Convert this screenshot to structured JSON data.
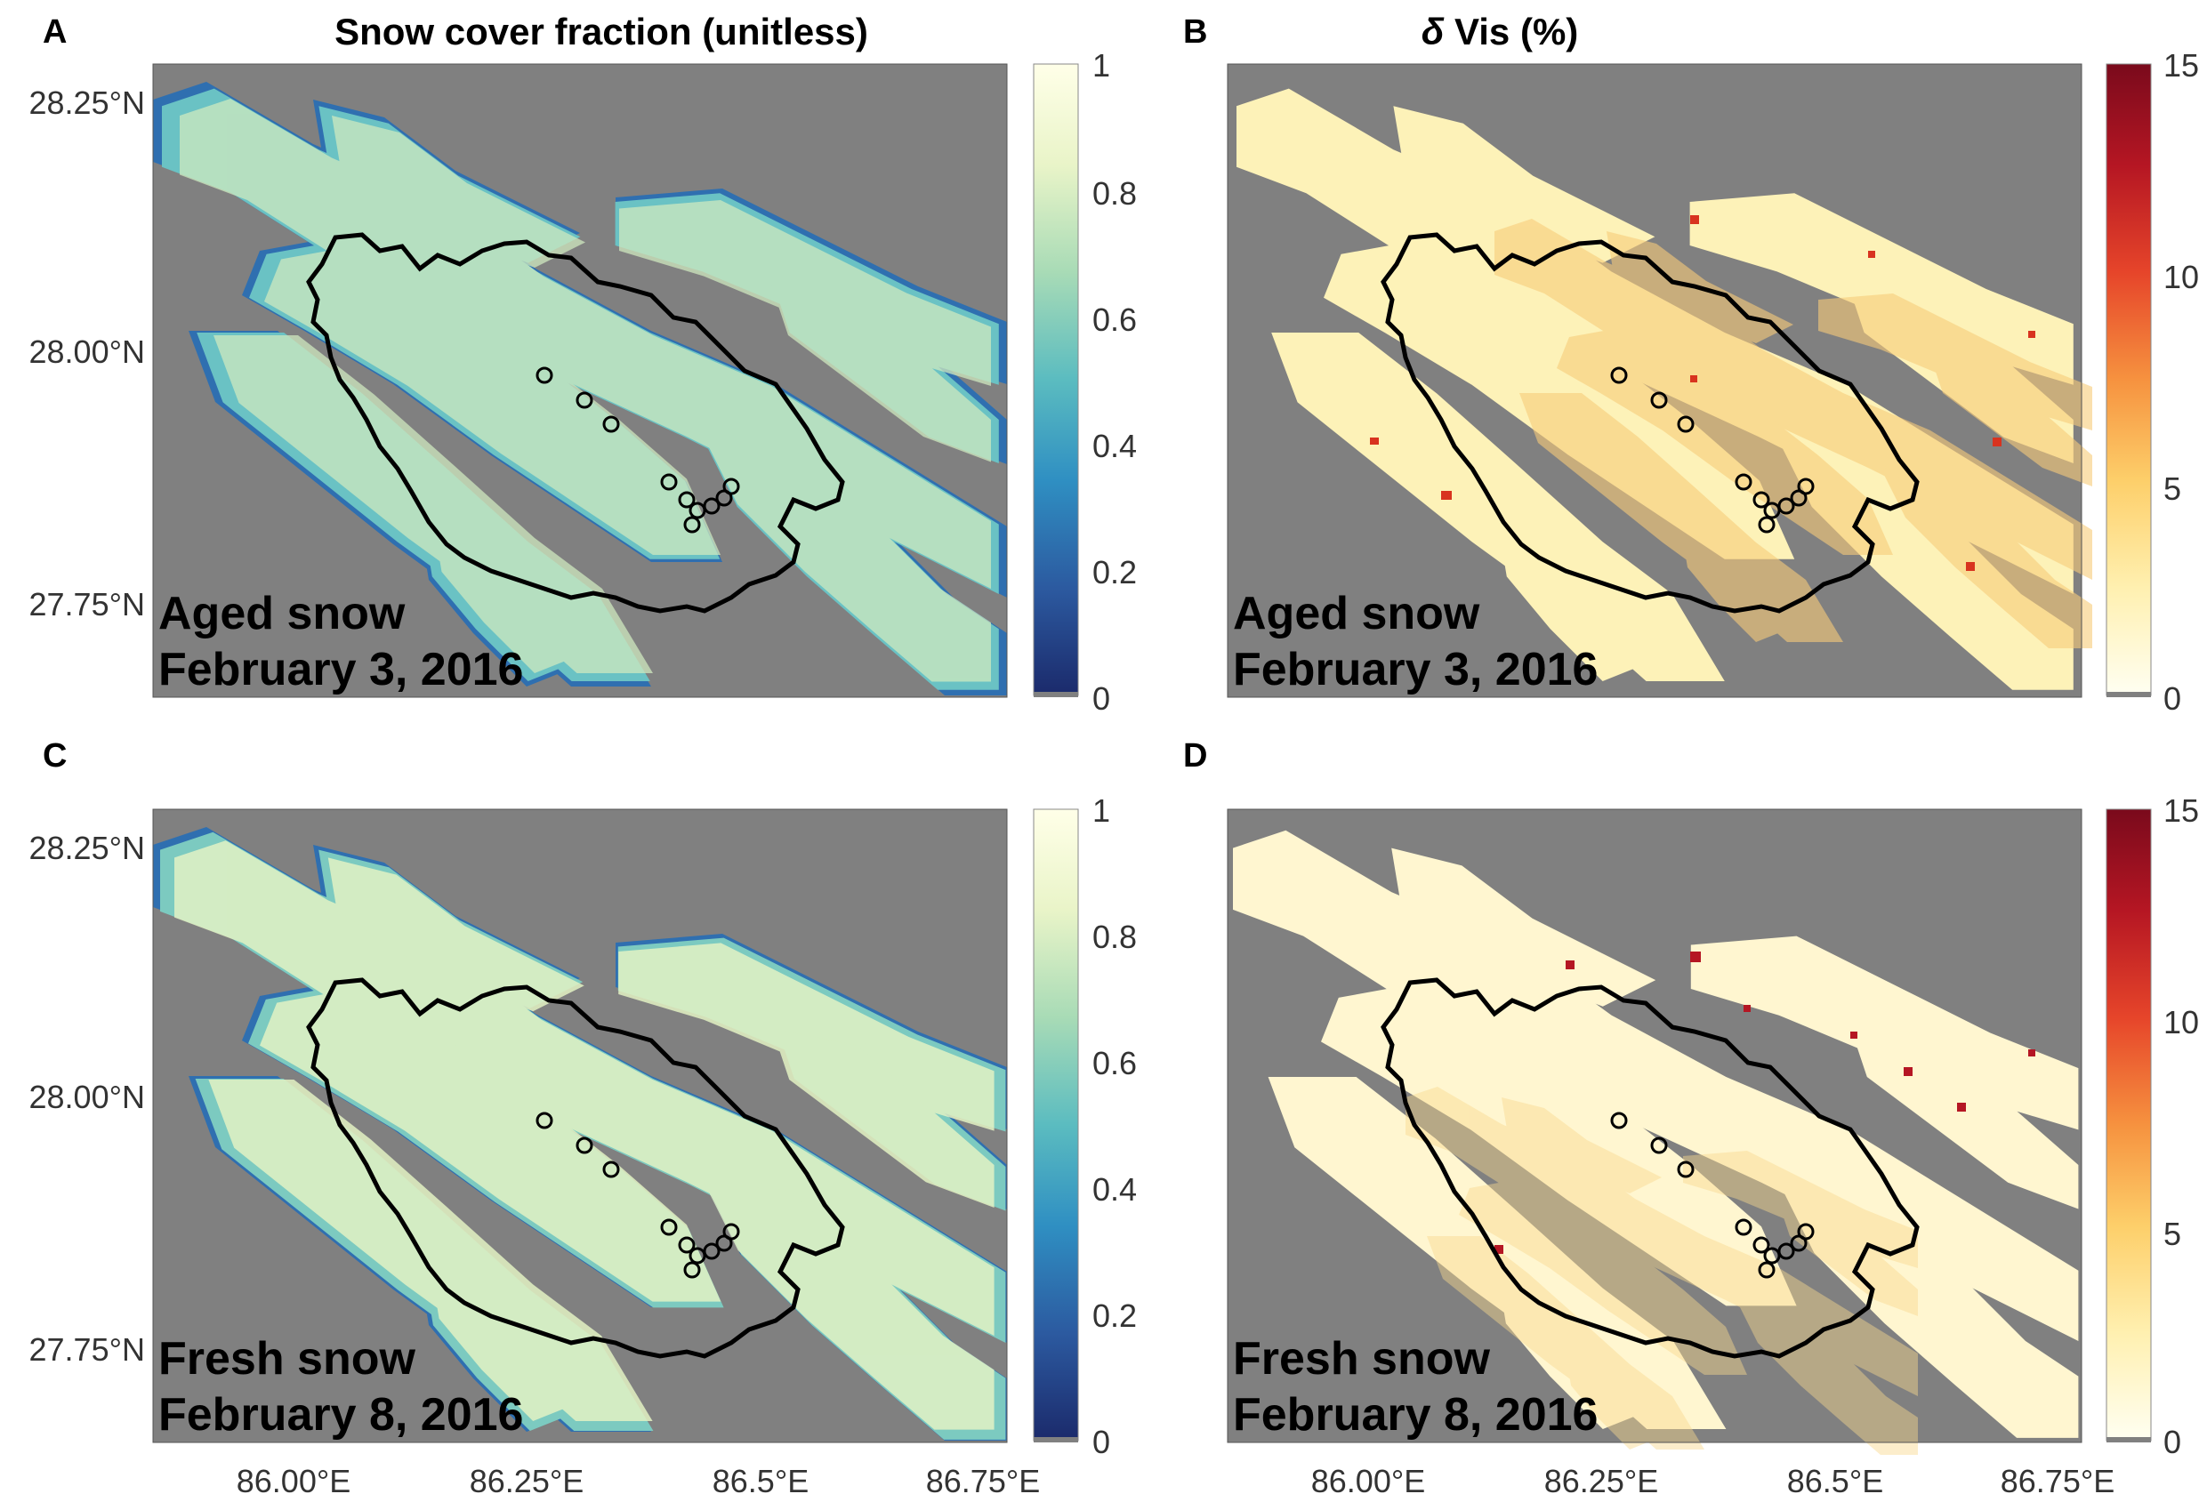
{
  "figure": {
    "panel_letters": [
      "A",
      "B",
      "C",
      "D"
    ],
    "column_titles": {
      "left": "Snow cover fraction (unitless)",
      "right_symbol": "δ",
      "right_text": " Vis (%)"
    },
    "lat_ticks": [
      "28.25°N",
      "28.00°N",
      "27.75°N"
    ],
    "lon_ticks": [
      "86.00°E",
      "86.25°E",
      "86.5°E",
      "86.75°E"
    ],
    "colorbar_fsca": {
      "ticks": [
        "1",
        "0.8",
        "0.6",
        "0.4",
        "0.2",
        "0"
      ],
      "colors": [
        "#1b2a6b",
        "#2c5aa0",
        "#2f8fc2",
        "#5bbcc0",
        "#a8dbb6",
        "#e9f4c8",
        "#ffffe8"
      ]
    },
    "colorbar_dvis": {
      "ticks": [
        "15",
        "10",
        "5",
        "0"
      ],
      "colors": [
        "#fffff2",
        "#fff0b0",
        "#fdcf6a",
        "#f6923f",
        "#e6452a",
        "#b51623",
        "#7a0a1c"
      ]
    },
    "panels": [
      {
        "id": "A",
        "label_line1": "Aged snow",
        "label_line2": "February 3, 2016"
      },
      {
        "id": "B",
        "label_line1": "Aged snow",
        "label_line2": "February 3, 2016"
      },
      {
        "id": "C",
        "label_line1": "Fresh snow",
        "label_line2": "February 8, 2016"
      },
      {
        "id": "D",
        "label_line1": "Fresh snow",
        "label_line2": "February 8, 2016"
      }
    ],
    "colors": {
      "nodata_gray": "#808080",
      "boundary": "#000000"
    }
  }
}
